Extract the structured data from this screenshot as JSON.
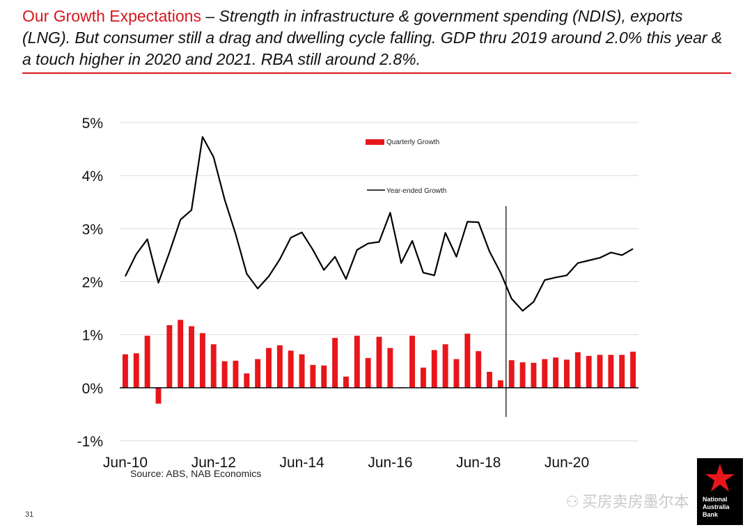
{
  "slide": {
    "headline_lead": "Our Growth Expectations",
    "headline_rest": " – Strength in infrastructure & government spending (NDIS), exports (LNG).  But consumer still a drag and dwelling cycle falling. GDP thru 2019 around 2.0% this year & a touch higher in 2020 and 2021.  RBA still around 2.8%.",
    "source": "Source: ABS, NAB Economics",
    "slide_number": "31",
    "watermark": "买房卖房墨尔本",
    "logo_text": [
      "National",
      "Australia",
      "Bank"
    ]
  },
  "colors": {
    "accent": "#d8141c",
    "bar": "#e8161b",
    "line": "#000000",
    "grid": "#d9d9d9"
  },
  "chart_data": {
    "type": "bar",
    "title": "",
    "xlabel": "",
    "ylabel": "",
    "ylim": [
      -1,
      5
    ],
    "yticks": [
      "-1%",
      "0%",
      "1%",
      "2%",
      "3%",
      "4%",
      "5%"
    ],
    "ytick_values": [
      -1,
      0,
      1,
      2,
      3,
      4,
      5
    ],
    "xticks": [
      "Jun-10",
      "Jun-12",
      "Jun-14",
      "Jun-16",
      "Jun-18",
      "Jun-20"
    ],
    "xtick_index": [
      0,
      8,
      16,
      24,
      32,
      40
    ],
    "grid": true,
    "legend_position": "top-center",
    "forecast_divider_index": 35,
    "categories": [
      "Jun-10",
      "Sep-10",
      "Dec-10",
      "Mar-11",
      "Jun-11",
      "Sep-11",
      "Dec-11",
      "Mar-12",
      "Jun-12",
      "Sep-12",
      "Dec-12",
      "Mar-13",
      "Jun-13",
      "Sep-13",
      "Dec-13",
      "Mar-14",
      "Jun-14",
      "Sep-14",
      "Dec-14",
      "Mar-15",
      "Jun-15",
      "Sep-15",
      "Dec-15",
      "Mar-16",
      "Jun-16",
      "Sep-16",
      "Dec-16",
      "Mar-17",
      "Jun-17",
      "Sep-17",
      "Dec-17",
      "Mar-18",
      "Jun-18",
      "Sep-18",
      "Dec-18",
      "Mar-19",
      "Jun-19",
      "Sep-19",
      "Dec-19",
      "Mar-20",
      "Jun-20",
      "Sep-20",
      "Dec-20",
      "Mar-21",
      "Jun-21",
      "Sep-21",
      "Dec-21"
    ],
    "series": [
      {
        "name": "Quarterly Growth",
        "kind": "bar",
        "values": [
          0.63,
          0.65,
          0.98,
          -0.3,
          1.18,
          1.28,
          1.16,
          1.03,
          0.82,
          0.5,
          0.51,
          0.27,
          0.54,
          0.75,
          0.8,
          0.7,
          0.63,
          0.43,
          0.42,
          0.94,
          0.21,
          0.98,
          0.56,
          0.96,
          0.75,
          0.01,
          0.98,
          0.38,
          0.71,
          0.82,
          0.54,
          1.02,
          0.69,
          0.3,
          0.14,
          0.52,
          0.48,
          0.47,
          0.54,
          0.57,
          0.53,
          0.67,
          0.6,
          0.62,
          0.62,
          0.62,
          0.68
        ]
      },
      {
        "name": "Year-ended Growth",
        "kind": "line",
        "values": [
          2.1,
          2.52,
          2.8,
          1.98,
          2.55,
          3.17,
          3.35,
          4.73,
          4.35,
          3.55,
          2.9,
          2.15,
          1.87,
          2.1,
          2.42,
          2.83,
          2.93,
          2.6,
          2.22,
          2.47,
          2.05,
          2.6,
          2.72,
          2.75,
          3.3,
          2.35,
          2.77,
          2.17,
          2.12,
          2.92,
          2.47,
          3.13,
          3.12,
          2.57,
          2.17,
          1.68,
          1.45,
          1.62,
          2.03,
          2.08,
          2.12,
          2.35,
          2.4,
          2.45,
          2.55,
          2.5,
          2.62
        ]
      }
    ]
  }
}
